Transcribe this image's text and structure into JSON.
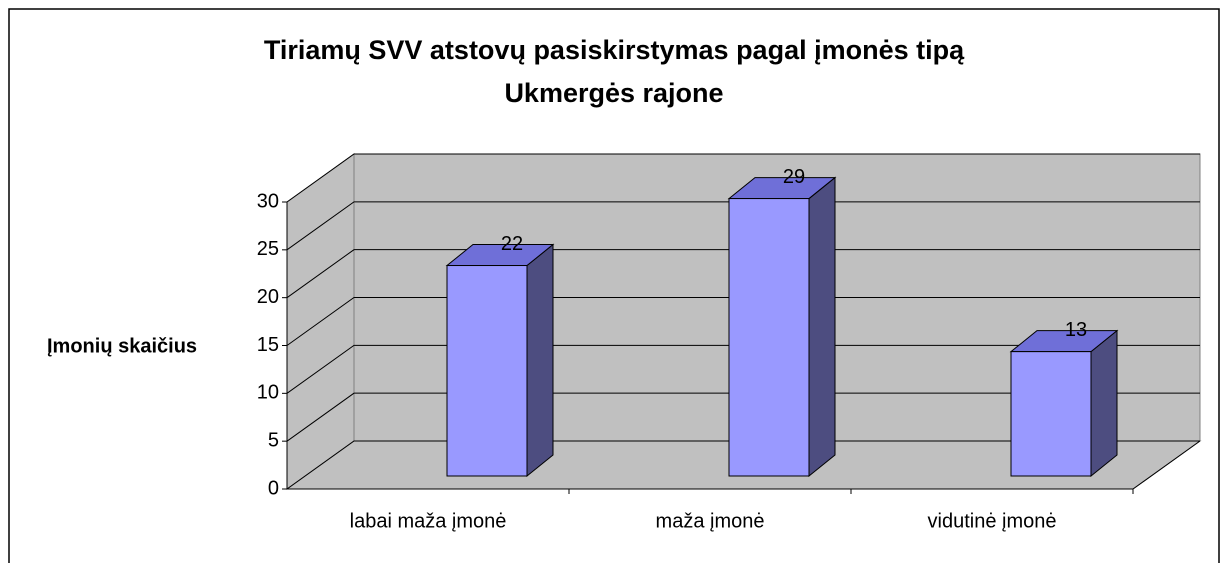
{
  "chart_data": {
    "type": "bar3d",
    "title": [
      "Tiriamų SVV atstovų pasiskirstymas pagal įmonės tipą",
      "Ukmergės rajone"
    ],
    "y_label": "Įmonių skaičius",
    "categories": [
      "labai maža įmonė",
      "maža įmonė",
      "vidutinė įmonė"
    ],
    "values": [
      22,
      29,
      13
    ],
    "color": "#9999ff",
    "side_color": "#4d4d80",
    "top_color": "#6f6fd8",
    "ylim": [
      0,
      30
    ],
    "yticks": [
      0,
      5,
      10,
      15,
      20,
      25,
      30
    ],
    "grid": true
  }
}
